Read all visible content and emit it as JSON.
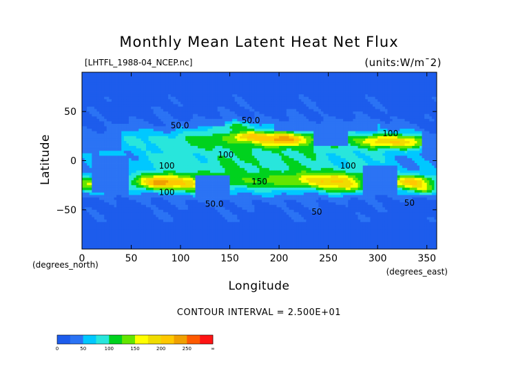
{
  "chart_data": {
    "type": "heatmap",
    "title": "Monthly Mean Latent Heat Net Flux",
    "source_file": "[LHTFL_1988-04_NCEP.nc]",
    "units": "(units:W/m^2)",
    "xlabel": "Longitude",
    "ylabel": "Latitude",
    "x_unit_note": "(degrees_east)",
    "y_unit_note": "(degrees_north)",
    "xlim": [
      0,
      360
    ],
    "ylim": [
      -90,
      90
    ],
    "x_ticks": [
      {
        "value": 0,
        "label": "0"
      },
      {
        "value": 50,
        "label": "50"
      },
      {
        "value": 100,
        "label": "100"
      },
      {
        "value": 150,
        "label": "150"
      },
      {
        "value": 200,
        "label": "200"
      },
      {
        "value": 250,
        "label": "250"
      },
      {
        "value": 300,
        "label": "300"
      },
      {
        "value": 350,
        "label": "350"
      }
    ],
    "y_ticks": [
      {
        "value": 50,
        "label": "50"
      },
      {
        "value": 0,
        "label": "0"
      },
      {
        "value": -50,
        "label": "−50"
      }
    ],
    "contour_interval_text": "CONTOUR INTERVAL = 2.500E+01",
    "contour_interval": 25,
    "contour_labels": [
      {
        "lon": 90,
        "lat": 33,
        "text": "50.0"
      },
      {
        "lon": 162,
        "lat": 38,
        "text": "50.0"
      },
      {
        "lon": 138,
        "lat": 3,
        "text": "100"
      },
      {
        "lon": 78,
        "lat": -8,
        "text": "100"
      },
      {
        "lon": 78,
        "lat": -35,
        "text": "100"
      },
      {
        "lon": 172,
        "lat": -24,
        "text": "150"
      },
      {
        "lon": 305,
        "lat": 25,
        "text": "100"
      },
      {
        "lon": 262,
        "lat": -8,
        "text": "100"
      },
      {
        "lon": 125,
        "lat": -47,
        "text": "50.0"
      },
      {
        "lon": 327,
        "lat": -46,
        "text": "50"
      },
      {
        "lon": 233,
        "lat": -55,
        "text": "50"
      }
    ],
    "colorbar": {
      "boundaries": [
        0,
        25,
        50,
        75,
        100,
        125,
        150,
        175,
        200,
        225,
        250,
        275,
        300
      ],
      "colors": [
        "#1d5cec",
        "#2b73f4",
        "#00c8ff",
        "#28e6dc",
        "#00d21e",
        "#64e600",
        "#ffff00",
        "#f0dc00",
        "#ffc800",
        "#f0a000",
        "#ff5a00",
        "#ff1414"
      ],
      "labels": [
        "0",
        "50",
        "100",
        "150",
        "200",
        "250",
        "∞"
      ],
      "label_values": [
        0,
        50,
        100,
        150,
        200,
        250,
        300
      ]
    },
    "grid": false
  }
}
